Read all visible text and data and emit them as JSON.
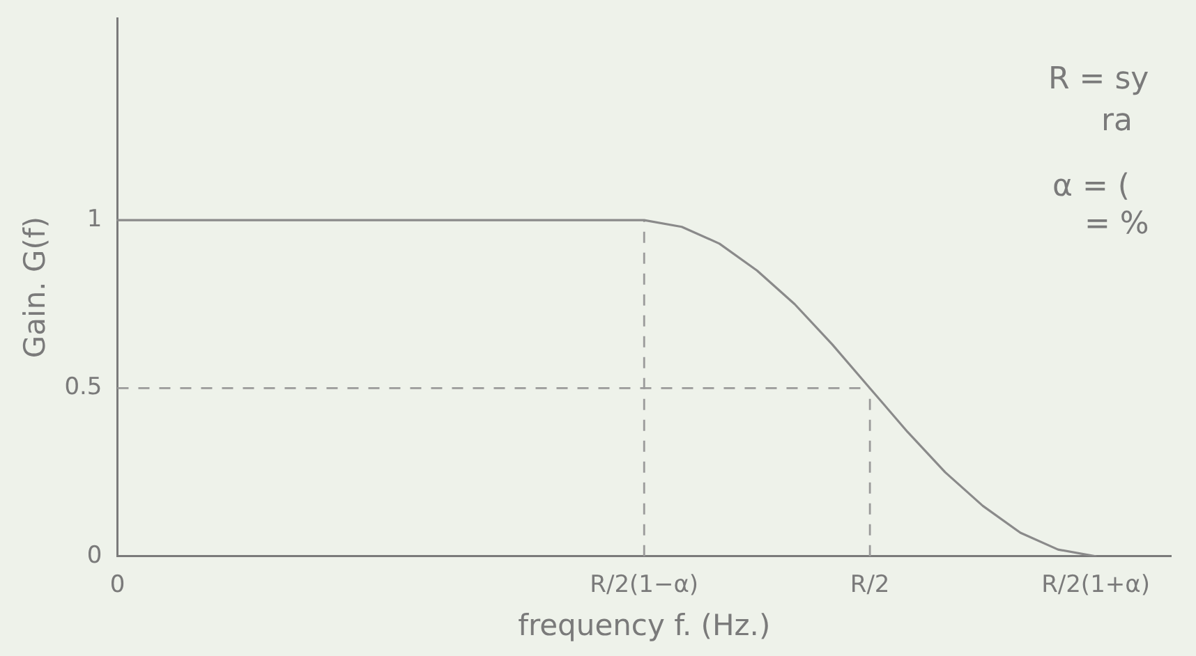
{
  "chart_data": {
    "type": "line",
    "xlabel": "frequency f. (Hz.)",
    "ylabel": "Gain. G(f)",
    "categories": [
      "0",
      null,
      null,
      null,
      null,
      null,
      null,
      null,
      null,
      null,
      null,
      null,
      null,
      null,
      "R/2(1−α)",
      null,
      null,
      null,
      null,
      null,
      "R/2",
      null,
      null,
      null,
      null,
      null,
      "R/2(1+α)",
      null,
      null
    ],
    "ylim": [
      0,
      1.6
    ],
    "yticks": [
      0,
      0.5,
      1
    ],
    "series": [
      {
        "color": "#8a8a8a",
        "values": [
          1,
          1,
          1,
          1,
          1,
          1,
          1,
          1,
          1,
          1,
          1,
          1,
          1,
          1,
          1,
          0.98,
          0.93,
          0.85,
          0.75,
          0.63,
          0.5,
          0.37,
          0.25,
          0.15,
          0.07,
          0.02,
          0,
          null,
          null
        ]
      }
    ],
    "ref_lines": [
      {
        "axis": "y",
        "value": 0.5,
        "color": "#9a9a9a",
        "line_style": "dashed"
      },
      {
        "axis": "x",
        "value": "R/2(1−α)",
        "color": "#9a9a9a",
        "line_style": "dashed"
      },
      {
        "axis": "x",
        "value": "R/2",
        "color": "#9a9a9a",
        "line_style": "dashed"
      }
    ],
    "annotations": [
      "R = sy",
      "ra",
      "α = (",
      "= %"
    ],
    "marker": "none",
    "line_style": "solid",
    "grid": false,
    "legend": false
  }
}
